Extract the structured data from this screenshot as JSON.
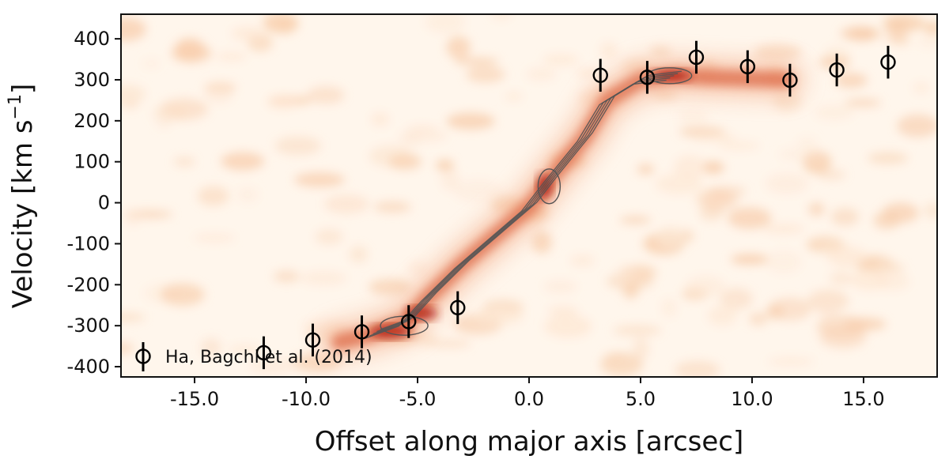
{
  "chart_data": {
    "type": "scatter",
    "title": "",
    "xlabel": "Offset along major axis [arcsec]",
    "ylabel": "Velocity [km s",
    "ylabel_sup": "−1",
    "ylabel_end": "]",
    "xlim": [
      -18.3,
      18.3
    ],
    "ylim": [
      460,
      -425
    ],
    "y_inverted": true,
    "grid": false,
    "background": "position-velocity diagram (red colormap) with contours",
    "x_ticks": [
      -15.0,
      -10.0,
      -5.0,
      0.0,
      5.0,
      10.0,
      15.0
    ],
    "x_tick_labels": [
      "-15.0",
      "-10.0",
      "-5.0",
      "0.0",
      "5.0",
      "10.0",
      "15.0"
    ],
    "y_ticks": [
      -400,
      -300,
      -200,
      -100,
      0,
      100,
      200,
      300,
      400
    ],
    "y_tick_labels": [
      "-400",
      "-300",
      "-200",
      "-100",
      "0",
      "100",
      "200",
      "300",
      "400"
    ],
    "legend": {
      "placement": "bottom-left",
      "entries": [
        "Ha, Bagchi et al. (2014)"
      ]
    },
    "series": [
      {
        "name": "Ha, Bagchi et al. (2014)",
        "marker": "open-circle",
        "points": [
          {
            "x": -11.9,
            "y": -366,
            "err": 40
          },
          {
            "x": -9.7,
            "y": -335,
            "err": 40
          },
          {
            "x": -7.5,
            "y": -315,
            "err": 40
          },
          {
            "x": -5.4,
            "y": -290,
            "err": 40
          },
          {
            "x": -3.2,
            "y": -256,
            "err": 40
          },
          {
            "x": 3.2,
            "y": 311,
            "err": 40
          },
          {
            "x": 5.3,
            "y": 306,
            "err": 40
          },
          {
            "x": 7.5,
            "y": 355,
            "err": 40
          },
          {
            "x": 9.8,
            "y": 332,
            "err": 40
          },
          {
            "x": 11.7,
            "y": 299,
            "err": 40
          },
          {
            "x": 13.8,
            "y": 324,
            "err": 40
          },
          {
            "x": 16.1,
            "y": 343,
            "err": 40
          }
        ]
      }
    ],
    "emission_ridge": [
      {
        "x": -8.5,
        "y": -340
      },
      {
        "x": -7.0,
        "y": -320
      },
      {
        "x": -5.5,
        "y": -290
      },
      {
        "x": -4.5,
        "y": -230
      },
      {
        "x": -3.0,
        "y": -150
      },
      {
        "x": -1.5,
        "y": -80
      },
      {
        "x": 0.0,
        "y": -10
      },
      {
        "x": 1.0,
        "y": 60
      },
      {
        "x": 2.5,
        "y": 160
      },
      {
        "x": 3.5,
        "y": 250
      },
      {
        "x": 5.0,
        "y": 300
      },
      {
        "x": 6.5,
        "y": 310
      },
      {
        "x": 8.5,
        "y": 305
      },
      {
        "x": 11.5,
        "y": 300
      }
    ],
    "colors": {
      "cmap_low": "#fff6ec",
      "cmap_mid": "#f2a47e",
      "cmap_high": "#b01e10",
      "contour": "#555555",
      "marker": "#000000"
    }
  }
}
